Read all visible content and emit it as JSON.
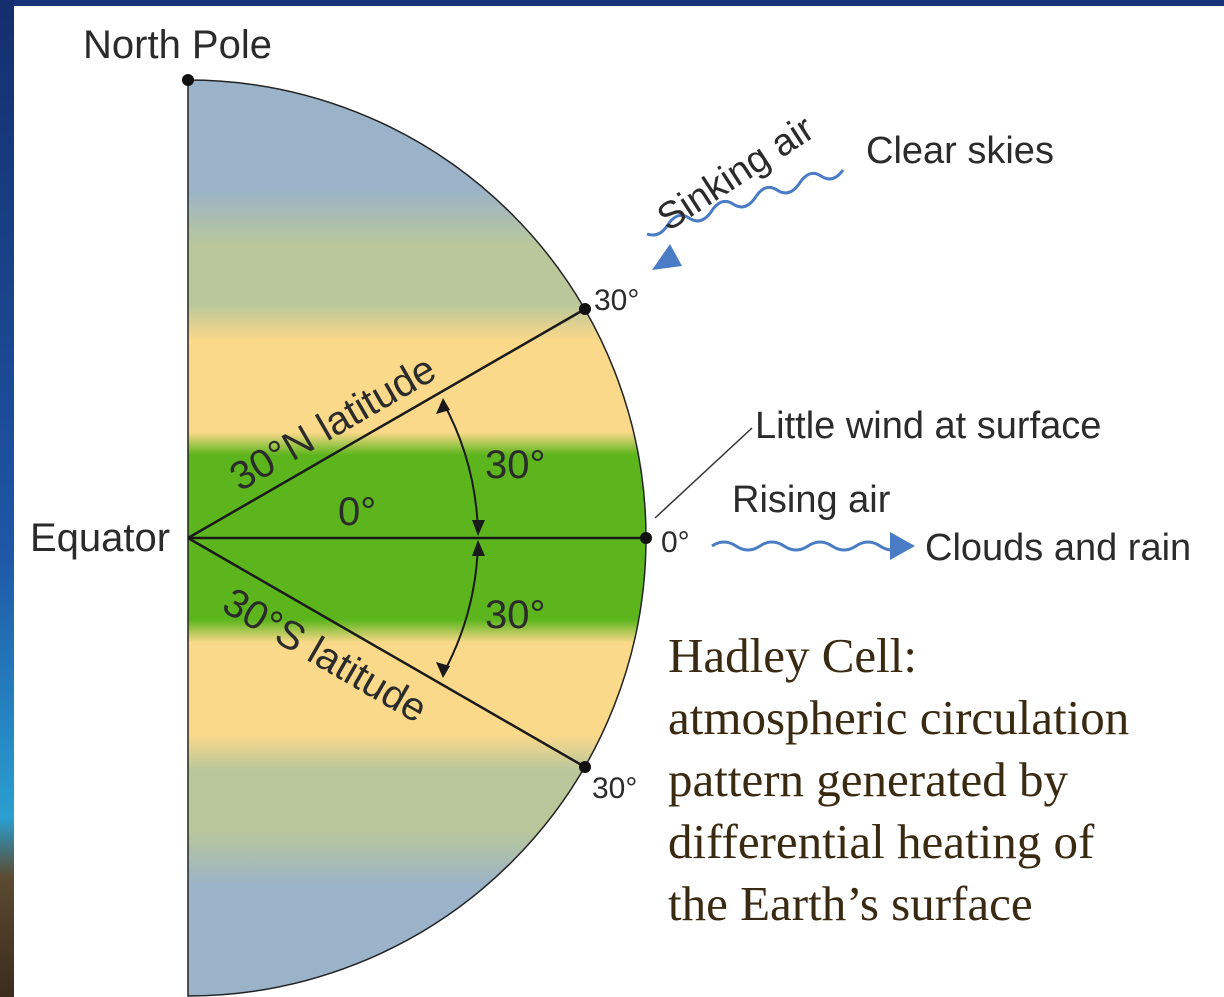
{
  "labels": {
    "north_pole": "North Pole",
    "equator": "Equator",
    "clear_skies": "Clear skies",
    "sinking_air": "Sinking air",
    "north_30_tick": "30°",
    "south_30_tick": "30°",
    "zero_tick": "0°",
    "north_latitude": "30°N latitude",
    "south_latitude": "30°S latitude",
    "zero_inside": "0°",
    "angle_north": "30°",
    "angle_south": "30°",
    "little_wind": "Little wind at surface",
    "rising_air": "Rising air",
    "clouds_rain": "Clouds and rain"
  },
  "caption": {
    "line1": "Hadley Cell:",
    "line2": "atmospheric circulation",
    "line3": "pattern generated by",
    "line4": "differential heating of",
    "line5": "the Earth’s surface"
  },
  "colors": {
    "polar_band": "#9bb3c8",
    "temperate_band": "#b9c79b",
    "subtropic_band": "#fbd98a",
    "tropic_band": "#5cb51c",
    "arrow_blue": "#4a7cc5",
    "frame": "#1a3f86"
  }
}
